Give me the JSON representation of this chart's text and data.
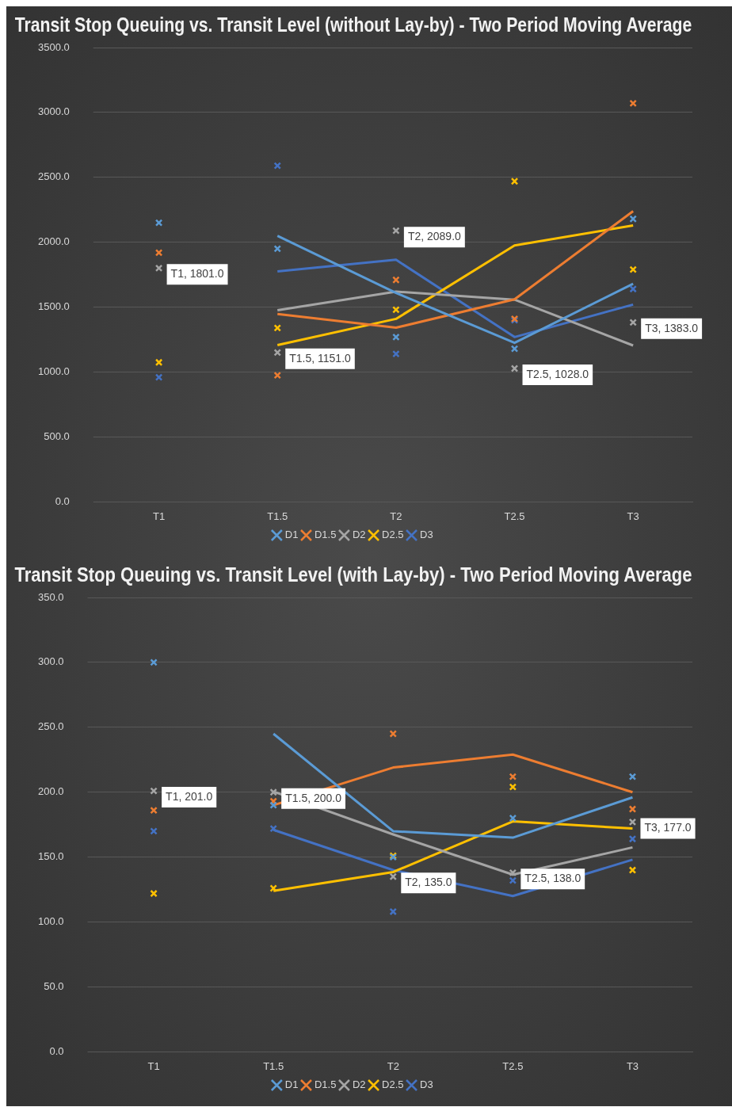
{
  "chart_data": [
    {
      "type": "scatter",
      "title": "Transit Stop Queuing vs. Transit Level (without Lay-by) - Two Period Moving Average",
      "categories": [
        "T1",
        "T1.5",
        "T2",
        "T2.5",
        "T3"
      ],
      "ylim": [
        0,
        3500
      ],
      "yticks": [
        {
          "value": 0,
          "label": "0.0"
        },
        {
          "value": 500,
          "label": "500.0"
        },
        {
          "value": 1000,
          "label": "1000.0"
        },
        {
          "value": 1500,
          "label": "1500.0"
        },
        {
          "value": 2000,
          "label": "2000.0"
        },
        {
          "value": 2500,
          "label": "2500.0"
        },
        {
          "value": 3000,
          "label": "3000.0"
        },
        {
          "value": 3500,
          "label": "3500.0"
        }
      ],
      "grid": "y",
      "legend": "bottom",
      "series": [
        {
          "name": "D1",
          "color": "#5b9bd5",
          "marker": "cross",
          "values": [
            2150,
            1950,
            1270,
            1180,
            2180
          ]
        },
        {
          "name": "D1.5",
          "color": "#ed7d31",
          "marker": "cross",
          "values": [
            1920,
            975,
            1710,
            1410,
            3070
          ]
        },
        {
          "name": "D2",
          "color": "#a5a5a5",
          "marker": "cross",
          "values": [
            1801,
            1151,
            2089,
            1028,
            1383
          ],
          "value_labels": [
            "T1, 1801.0",
            "T1.5, 1151.0",
            "T2, 2089.0",
            "T2.5, 1028.0",
            "T3, 1383.0"
          ]
        },
        {
          "name": "D2.5",
          "color": "#ffc000",
          "marker": "cross",
          "values": [
            1075,
            1340,
            1480,
            2470,
            1790
          ]
        },
        {
          "name": "D3",
          "color": "#4472c4",
          "marker": "cross",
          "values": [
            960,
            2590,
            1140,
            1400,
            1640
          ]
        },
        {
          "type": "line",
          "color": "#5b9bd5",
          "marker": "none",
          "values": [
            null,
            2050,
            1610,
            1225,
            1680
          ]
        },
        {
          "type": "line",
          "color": "#ed7d31",
          "marker": "none",
          "values": [
            null,
            1448,
            1342,
            1560,
            2240
          ]
        },
        {
          "type": "line",
          "color": "#a5a5a5",
          "marker": "none",
          "values": [
            null,
            1476,
            1620,
            1558,
            1205
          ]
        },
        {
          "type": "line",
          "color": "#ffc000",
          "marker": "none",
          "values": [
            null,
            1208,
            1410,
            1975,
            2130
          ]
        },
        {
          "type": "line",
          "color": "#4472c4",
          "marker": "none",
          "values": [
            null,
            1775,
            1865,
            1270,
            1520
          ]
        }
      ]
    },
    {
      "type": "scatter",
      "title": "Transit Stop Queuing vs. Transit Level (with Lay-by) - Two Period Moving Average",
      "categories": [
        "T1",
        "T1.5",
        "T2",
        "T2.5",
        "T3"
      ],
      "ylim": [
        0,
        350
      ],
      "yticks": [
        {
          "value": 0,
          "label": "0.0"
        },
        {
          "value": 50,
          "label": "50.0"
        },
        {
          "value": 100,
          "label": "100.0"
        },
        {
          "value": 150,
          "label": "150.0"
        },
        {
          "value": 200,
          "label": "200.0"
        },
        {
          "value": 250,
          "label": "250.0"
        },
        {
          "value": 300,
          "label": "300.0"
        },
        {
          "value": 350,
          "label": "350.0"
        }
      ],
      "grid": "y",
      "legend": "bottom",
      "series": [
        {
          "name": "D1",
          "color": "#5b9bd5",
          "marker": "cross",
          "values": [
            300,
            190,
            150,
            180,
            212
          ]
        },
        {
          "name": "D1.5",
          "color": "#ed7d31",
          "marker": "cross",
          "values": [
            186,
            193,
            245,
            212,
            187
          ]
        },
        {
          "name": "D2",
          "color": "#a5a5a5",
          "marker": "cross",
          "values": [
            201,
            200,
            135,
            138,
            177
          ],
          "value_labels": [
            "T1, 201.0",
            "T1.5, 200.0",
            "T2, 135.0",
            "T2.5, 138.0",
            "T3, 177.0"
          ]
        },
        {
          "name": "D2.5",
          "color": "#ffc000",
          "marker": "cross",
          "values": [
            122,
            126,
            151,
            204,
            140
          ]
        },
        {
          "name": "D3",
          "color": "#4472c4",
          "marker": "cross",
          "values": [
            170,
            172,
            108,
            132,
            164
          ]
        },
        {
          "type": "line",
          "color": "#5b9bd5",
          "marker": "none",
          "values": [
            null,
            245,
            170,
            165,
            196
          ]
        },
        {
          "type": "line",
          "color": "#ed7d31",
          "marker": "none",
          "values": [
            null,
            190,
            219,
            229,
            200
          ]
        },
        {
          "type": "line",
          "color": "#a5a5a5",
          "marker": "none",
          "values": [
            null,
            200.5,
            167.5,
            136.5,
            157.5
          ]
        },
        {
          "type": "line",
          "color": "#ffc000",
          "marker": "none",
          "values": [
            null,
            124,
            138.5,
            177.5,
            172
          ]
        },
        {
          "type": "line",
          "color": "#4472c4",
          "marker": "none",
          "values": [
            null,
            171,
            140,
            120,
            148
          ]
        }
      ]
    }
  ]
}
